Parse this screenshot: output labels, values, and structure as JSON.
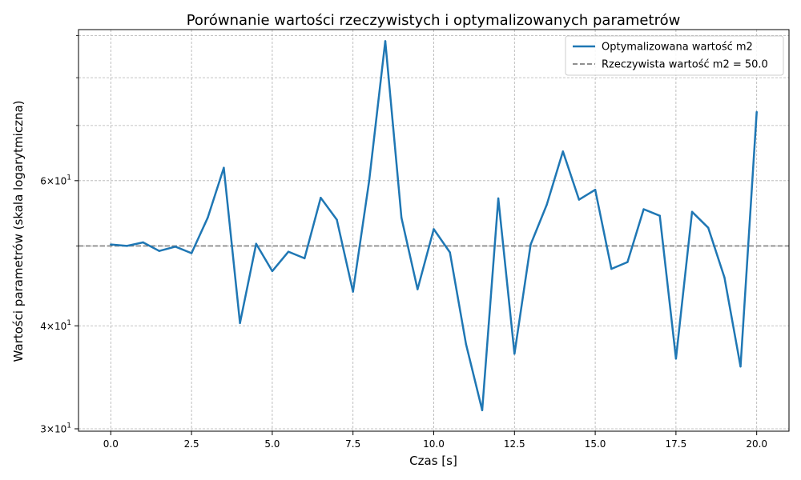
{
  "chart_data": {
    "type": "line",
    "title": "Porównanie wartości rzeczywistych i optymalizowanych parametrów",
    "xlabel": "Czas [s]",
    "ylabel": "Wartości parametrów (skala logarytmiczna)",
    "yscale": "log",
    "xlim": [
      -1.0,
      21.0
    ],
    "ylim": [
      29.8,
      91.5
    ],
    "grid": true,
    "legend_position": "top-right",
    "x_ticks": [
      {
        "value": 0.0,
        "label": "0.0"
      },
      {
        "value": 2.5,
        "label": "2.5"
      },
      {
        "value": 5.0,
        "label": "5.0"
      },
      {
        "value": 7.5,
        "label": "7.5"
      },
      {
        "value": 10.0,
        "label": "10.0"
      },
      {
        "value": 12.5,
        "label": "12.5"
      },
      {
        "value": 15.0,
        "label": "15.0"
      },
      {
        "value": 17.5,
        "label": "17.5"
      },
      {
        "value": 20.0,
        "label": "20.0"
      }
    ],
    "y_major_ticks": [
      {
        "value": 30,
        "base": "3",
        "exp": "1"
      },
      {
        "value": 40,
        "base": "4",
        "exp": "1"
      },
      {
        "value": 60,
        "base": "6",
        "exp": "1"
      }
    ],
    "y_minor_ticks": [
      50,
      70,
      80,
      90
    ],
    "x": [
      0.0,
      0.5,
      1.0,
      1.5,
      2.0,
      2.5,
      3.0,
      3.5,
      4.0,
      4.5,
      5.0,
      5.5,
      6.0,
      6.5,
      7.0,
      7.5,
      8.0,
      8.5,
      9.0,
      9.5,
      10.0,
      10.5,
      11.0,
      11.5,
      12.0,
      12.5,
      13.0,
      13.5,
      14.0,
      14.5,
      15.0,
      15.5,
      16.0,
      16.5,
      17.0,
      17.5,
      18.0,
      18.5,
      19.0,
      19.5,
      20.0
    ],
    "series": [
      {
        "name": "Optymalizowana wartość m2",
        "color": "#1f77b4",
        "style": "solid",
        "values": [
          50.2,
          50.0,
          50.5,
          49.3,
          49.9,
          49.0,
          54.1,
          62.2,
          40.3,
          50.3,
          46.6,
          49.2,
          48.3,
          57.2,
          53.8,
          44.0,
          60.0,
          88.6,
          54.1,
          44.3,
          52.4,
          49.1,
          38.0,
          31.6,
          57.1,
          37.0,
          50.2,
          56.1,
          65.1,
          56.9,
          58.5,
          46.9,
          47.8,
          55.4,
          54.4,
          36.5,
          55.0,
          52.6,
          45.8,
          35.7,
          72.7
        ]
      },
      {
        "name": "Rzeczywista wartość m2 = 50.0",
        "color": "#808080",
        "style": "dashed",
        "constant": 50.0
      }
    ]
  }
}
